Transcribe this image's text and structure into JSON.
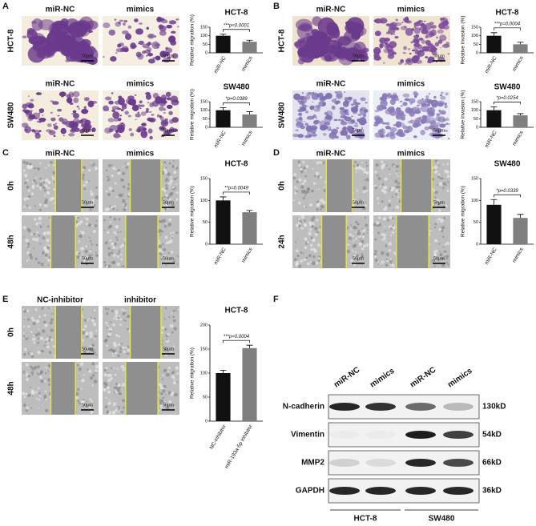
{
  "scale_bar": "50μm",
  "panels": [
    {
      "label": "A",
      "columns": [
        "miR-NC",
        "mimics"
      ],
      "rows": [
        {
          "label": "HCT-8",
          "chart": {
            "type": "bar",
            "title": "HCT-8",
            "ylabel": "Relative migration (%)",
            "categories": [
              "miR-NC",
              "mimics"
            ],
            "values": [
              100,
              65
            ],
            "errors": [
              9,
              9
            ],
            "annotation": "***p<0.0001",
            "ylim": [
              0,
              150
            ],
            "yticks": [
              0,
              50,
              100,
              150
            ],
            "colors": [
              "#111111",
              "#7f7f7f"
            ]
          }
        },
        {
          "label": "SW480",
          "chart": {
            "type": "bar",
            "title": "SW480",
            "ylabel": "Relative migration (%)",
            "categories": [
              "miR-NC",
              "mimics"
            ],
            "values": [
              100,
              75
            ],
            "errors": [
              15,
              16
            ],
            "annotation": "*p=0.0389",
            "ylim": [
              0,
              150
            ],
            "yticks": [
              0,
              50,
              100,
              150
            ],
            "colors": [
              "#111111",
              "#7f7f7f"
            ]
          }
        }
      ]
    },
    {
      "label": "B",
      "columns": [
        "miR-NC",
        "mimics"
      ],
      "rows": [
        {
          "label": "HCT-8",
          "chart": {
            "type": "bar",
            "title": "HCT-8",
            "ylabel": "Relative invasion (%)",
            "categories": [
              "miR-NC",
              "mimics"
            ],
            "values": [
              100,
              50
            ],
            "errors": [
              18,
              12
            ],
            "annotation": "***p=0.0004",
            "ylim": [
              0,
              150
            ],
            "yticks": [
              0,
              50,
              100,
              150
            ],
            "colors": [
              "#111111",
              "#7f7f7f"
            ]
          }
        },
        {
          "label": "SW480",
          "chart": {
            "type": "bar",
            "title": "SW480",
            "ylabel": "Relative invasion (%)",
            "categories": [
              "miR-NC",
              "mimics"
            ],
            "values": [
              100,
              70
            ],
            "errors": [
              20,
              10
            ],
            "annotation": "*p=0.0254",
            "ylim": [
              0,
              150
            ],
            "yticks": [
              0,
              50,
              100,
              150
            ],
            "colors": [
              "#111111",
              "#7f7f7f"
            ]
          }
        }
      ]
    },
    {
      "label": "C",
      "columns": [
        "miR-NC",
        "mimics"
      ],
      "rows": [
        "0h",
        "48h"
      ],
      "chart": {
        "type": "bar",
        "title": "HCT-8",
        "ylabel": "Relative migration (%)",
        "categories": [
          "miR-NC",
          "mimics"
        ],
        "values": [
          100,
          73
        ],
        "errors": [
          8,
          4
        ],
        "annotation": "**p=0.0049",
        "ylim": [
          0,
          150
        ],
        "yticks": [
          0,
          50,
          100,
          150
        ],
        "colors": [
          "#111111",
          "#7f7f7f"
        ]
      }
    },
    {
      "label": "D",
      "columns": [
        "miR-NC",
        "mimics"
      ],
      "rows": [
        "0h",
        "24h"
      ],
      "chart": {
        "type": "bar",
        "title": "SW480",
        "ylabel": "Relative migration (%)",
        "categories": [
          "miR-NC",
          "mimics"
        ],
        "values": [
          90,
          60
        ],
        "errors": [
          12,
          8
        ],
        "annotation": "*p=0.0339",
        "ylim": [
          0,
          150
        ],
        "yticks": [
          0,
          50,
          100,
          150
        ],
        "colors": [
          "#111111",
          "#7f7f7f"
        ]
      }
    },
    {
      "label": "E",
      "columns": [
        "NC-inhibitor",
        "inhibitor"
      ],
      "rows": [
        "0h",
        "48h"
      ],
      "chart": {
        "type": "bar",
        "title": "HCT-8",
        "ylabel": "Relative migration (%)",
        "categories": [
          "NC-inhibitor",
          "miR-193a-5p inhibitor"
        ],
        "values": [
          100,
          152
        ],
        "errors": [
          6,
          6
        ],
        "annotation": "***p=0.0004",
        "ylim": [
          0,
          200
        ],
        "yticks": [
          0,
          50,
          100,
          150,
          200
        ],
        "colors": [
          "#111111",
          "#7f7f7f"
        ]
      }
    }
  ],
  "blot": {
    "label": "F",
    "columns": [
      "miR-NC",
      "mimics",
      "miR-NC",
      "mimics"
    ],
    "rows": [
      {
        "name": "N-cadherin",
        "size": "130kD"
      },
      {
        "name": "Vimentin",
        "size": "54kD"
      },
      {
        "name": "MMP2",
        "size": "66kD"
      },
      {
        "name": "GAPDH",
        "size": "36kD"
      }
    ],
    "groups": [
      "HCT-8",
      "SW480"
    ]
  }
}
